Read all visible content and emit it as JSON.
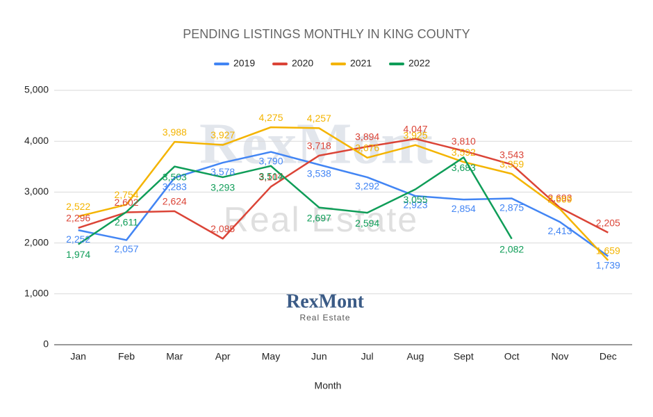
{
  "chart_data": {
    "type": "line",
    "title": "PENDING LISTINGS MONTHLY IN KING COUNTY",
    "x_label": "Month",
    "categories": [
      "Jan",
      "Feb",
      "Mar",
      "Apr",
      "May",
      "Jun",
      "Jul",
      "Aug",
      "Sept",
      "Oct",
      "Nov",
      "Dec"
    ],
    "series": [
      {
        "name": "2019",
        "color": "#4285f4",
        "values": [
          2252,
          2057,
          3283,
          3578,
          3790,
          3538,
          3292,
          2923,
          2854,
          2875,
          2413,
          1739
        ],
        "value_labels": [
          "2,252",
          "2,057",
          "3,283",
          "3,578",
          "3,790",
          "3,538",
          "3,292",
          "2,923",
          "2,854",
          "2,875",
          "2,413",
          "1,739"
        ]
      },
      {
        "name": "2020",
        "color": "#db4437",
        "values": [
          2296,
          2602,
          2624,
          2085,
          3107,
          3718,
          3894,
          4047,
          3810,
          3543,
          2693,
          2205
        ],
        "value_labels": [
          "2,296",
          "2,602",
          "2,624",
          "2,085",
          "3,107",
          "3,718",
          "3,894",
          "4,047",
          "3,810",
          "3,543",
          "2,693",
          "2,205"
        ]
      },
      {
        "name": "2021",
        "color": "#f4b400",
        "values": [
          2522,
          2754,
          3988,
          3927,
          4275,
          4257,
          3676,
          3925,
          3592,
          3359,
          2669,
          1659
        ],
        "value_labels": [
          "2,522",
          "2,754",
          "3,988",
          "3,927",
          "4,275",
          "4,257",
          "3,676",
          "3,925",
          "3,592",
          "3,359",
          "2,669",
          "1,659"
        ]
      },
      {
        "name": "2022",
        "color": "#0f9d58",
        "values": [
          1974,
          2611,
          3503,
          3293,
          3514,
          2697,
          2594,
          3055,
          3683,
          2082,
          null,
          null
        ],
        "value_labels": [
          "1,974",
          "2,611",
          "3,503",
          "3,293",
          "3,514",
          "2,697",
          "2,594",
          "3,055",
          "3,683",
          "2,082",
          null,
          null
        ]
      }
    ],
    "ylim": [
      0,
      5000
    ],
    "yticks": [
      0,
      {
        "value": 1000,
        "label": "1,000"
      },
      {
        "value": 2000,
        "label": "2,000"
      },
      {
        "value": 3000,
        "label": "3,000"
      },
      {
        "value": 4000,
        "label": "4,000"
      },
      {
        "value": 5000,
        "label": "5,000"
      }
    ],
    "grid": true,
    "legend": "top",
    "watermark": {
      "title": "RexMont",
      "subtitle": "Real Estate"
    },
    "logo": {
      "title": "RexMont",
      "subtitle": "Real Estate"
    }
  }
}
